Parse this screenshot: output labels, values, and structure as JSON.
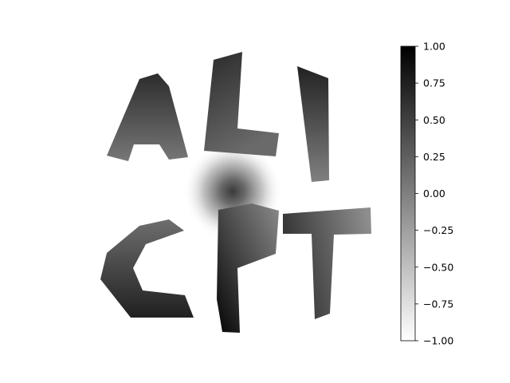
{
  "figure": {
    "background": "#ffffff",
    "glyph_colormap": "gray_r",
    "blob_colormap": "gray_r"
  },
  "colorbar": {
    "vmin": -1.0,
    "vmax": 1.0,
    "colormap": "gray_r",
    "ticks": [
      "1.00",
      "0.75",
      "0.50",
      "0.25",
      "0.00",
      "−0.25",
      "−0.50",
      "−0.75",
      "−1.00"
    ]
  }
}
